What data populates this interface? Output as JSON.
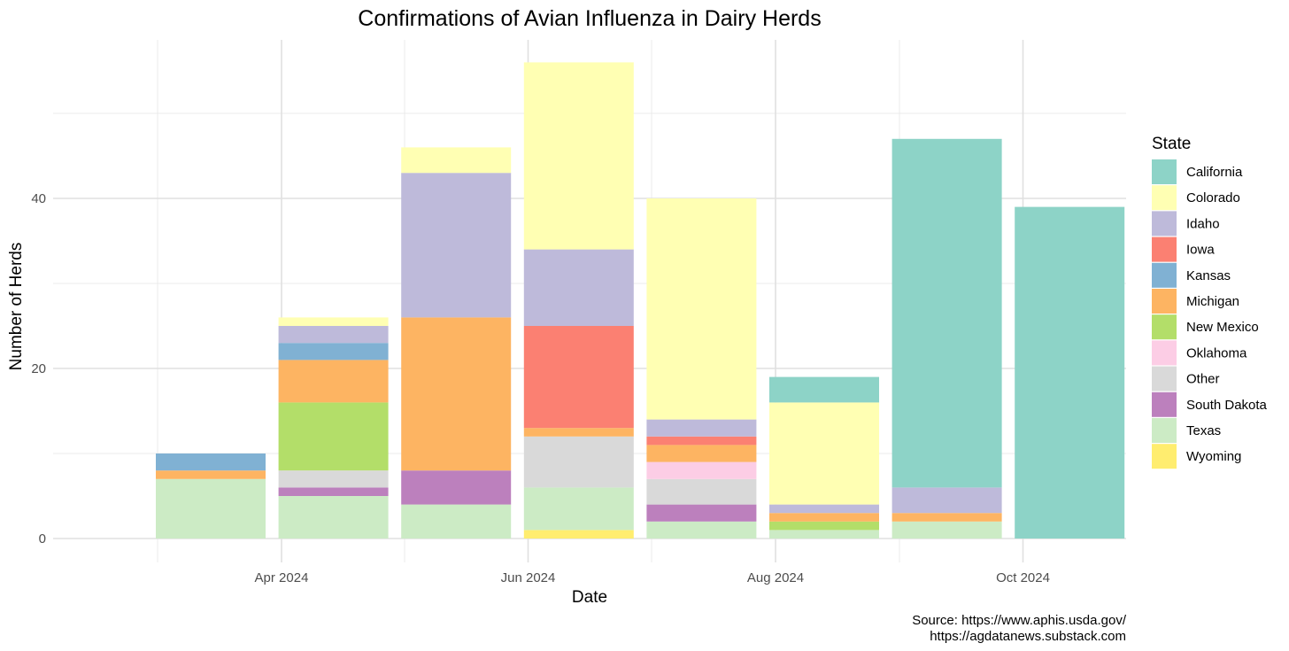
{
  "chart_data": {
    "type": "bar",
    "stacked": true,
    "title": "Confirmations of Avian Influenza in Dairy Herds",
    "xlabel": "Date",
    "ylabel": "Number of Herds",
    "x_ticks": [
      "Apr 2024",
      "Jun 2024",
      "Aug 2024",
      "Oct 2024"
    ],
    "y_ticks": [
      0,
      20,
      40
    ],
    "ylim": [
      0,
      58
    ],
    "grid": true,
    "categories": [
      "Mar 2024",
      "Apr 2024",
      "May 2024",
      "Jun 2024",
      "Jul 2024",
      "Aug 2024",
      "Sep 2024",
      "Oct 2024"
    ],
    "series": [
      {
        "name": "Wyoming",
        "color": "#FFED6F",
        "values": [
          0,
          0,
          0,
          1,
          0,
          0,
          0,
          0
        ]
      },
      {
        "name": "Texas",
        "color": "#CCEBC5",
        "values": [
          7,
          5,
          4,
          5,
          2,
          1,
          2,
          0
        ]
      },
      {
        "name": "South Dakota",
        "color": "#BC80BD",
        "values": [
          0,
          1,
          4,
          0,
          2,
          0,
          0,
          0
        ]
      },
      {
        "name": "Other",
        "color": "#D9D9D9",
        "values": [
          0,
          2,
          0,
          6,
          3,
          0,
          0,
          0
        ]
      },
      {
        "name": "Oklahoma",
        "color": "#FCCDE5",
        "values": [
          0,
          0,
          0,
          0,
          2,
          0,
          0,
          0
        ]
      },
      {
        "name": "New Mexico",
        "color": "#B3DE69",
        "values": [
          0,
          8,
          0,
          0,
          0,
          1,
          0,
          0
        ]
      },
      {
        "name": "Michigan",
        "color": "#FDB462",
        "values": [
          1,
          5,
          18,
          1,
          2,
          1,
          1,
          0
        ]
      },
      {
        "name": "Kansas",
        "color": "#80B1D3",
        "values": [
          2,
          2,
          0,
          0,
          0,
          0,
          0,
          0
        ]
      },
      {
        "name": "Iowa",
        "color": "#FB8072",
        "values": [
          0,
          0,
          0,
          12,
          1,
          0,
          0,
          0
        ]
      },
      {
        "name": "Idaho",
        "color": "#BEBADA",
        "values": [
          0,
          2,
          17,
          9,
          2,
          1,
          3,
          0
        ]
      },
      {
        "name": "Colorado",
        "color": "#FFFFB3",
        "values": [
          0,
          1,
          3,
          22,
          26,
          12,
          0,
          0
        ]
      },
      {
        "name": "California",
        "color": "#8DD3C7",
        "values": [
          0,
          0,
          0,
          0,
          0,
          3,
          41,
          39
        ]
      }
    ],
    "legend": {
      "title": "State",
      "placement": "right",
      "entries": [
        "California",
        "Colorado",
        "Idaho",
        "Iowa",
        "Kansas",
        "Michigan",
        "New Mexico",
        "Oklahoma",
        "Other",
        "South Dakota",
        "Texas",
        "Wyoming"
      ]
    },
    "caption": [
      "Source: https://www.aphis.usda.gov/",
      "https://agdatanews.substack.com"
    ]
  }
}
